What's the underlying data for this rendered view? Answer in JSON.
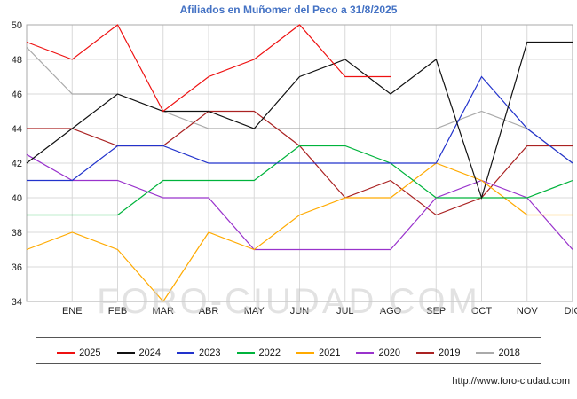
{
  "watermark": {
    "text": "FORO-CIUDAD.COM"
  },
  "footer": {
    "url": "http://www.foro-ciudad.com"
  },
  "chart_data": {
    "type": "line",
    "title": "Afiliados en Muñomer del Peco a 31/8/2025",
    "title_color": "#4472c4",
    "xlabel": "",
    "ylabel": "",
    "grid": true,
    "legend_position": "bottom",
    "ylim": [
      34,
      50
    ],
    "ytick_step": 2,
    "categories": [
      "",
      "ENE",
      "FEB",
      "MAR",
      "ABR",
      "MAY",
      "JUN",
      "JUL",
      "AGO",
      "SEP",
      "OCT",
      "NOV",
      "DIC"
    ],
    "series": [
      {
        "name": "2025",
        "color": "#ee1111",
        "values": [
          49,
          48,
          50,
          45,
          47,
          48,
          50,
          47,
          47,
          null,
          null,
          null,
          null
        ]
      },
      {
        "name": "2024",
        "color": "#111111",
        "values": [
          42,
          44,
          46,
          45,
          45,
          44,
          47,
          48,
          46,
          48,
          40,
          49,
          49
        ]
      },
      {
        "name": "2023",
        "color": "#2233cc",
        "values": [
          41,
          41,
          43,
          43,
          42,
          42,
          42,
          42,
          42,
          42,
          47,
          44,
          42
        ]
      },
      {
        "name": "2022",
        "color": "#00b33c",
        "values": [
          39,
          39,
          39,
          41,
          41,
          41,
          43,
          43,
          42,
          40,
          40,
          40,
          41
        ]
      },
      {
        "name": "2021",
        "color": "#ffaa00",
        "values": [
          37,
          38,
          37,
          34,
          38,
          37,
          39,
          40,
          40,
          42,
          41,
          39,
          39
        ]
      },
      {
        "name": "2020",
        "color": "#9933cc",
        "values": [
          42.5,
          41,
          41,
          40,
          40,
          37,
          37,
          37,
          37,
          40,
          41,
          40,
          37
        ]
      },
      {
        "name": "2019",
        "color": "#aa2222",
        "values": [
          44,
          44,
          43,
          43,
          45,
          45,
          43,
          40,
          41,
          39,
          40,
          43,
          43
        ]
      },
      {
        "name": "2018",
        "color": "#aaaaaa",
        "values": [
          48.7,
          46,
          46,
          45,
          44,
          44,
          44,
          44,
          44,
          44,
          45,
          44,
          42
        ]
      }
    ]
  }
}
